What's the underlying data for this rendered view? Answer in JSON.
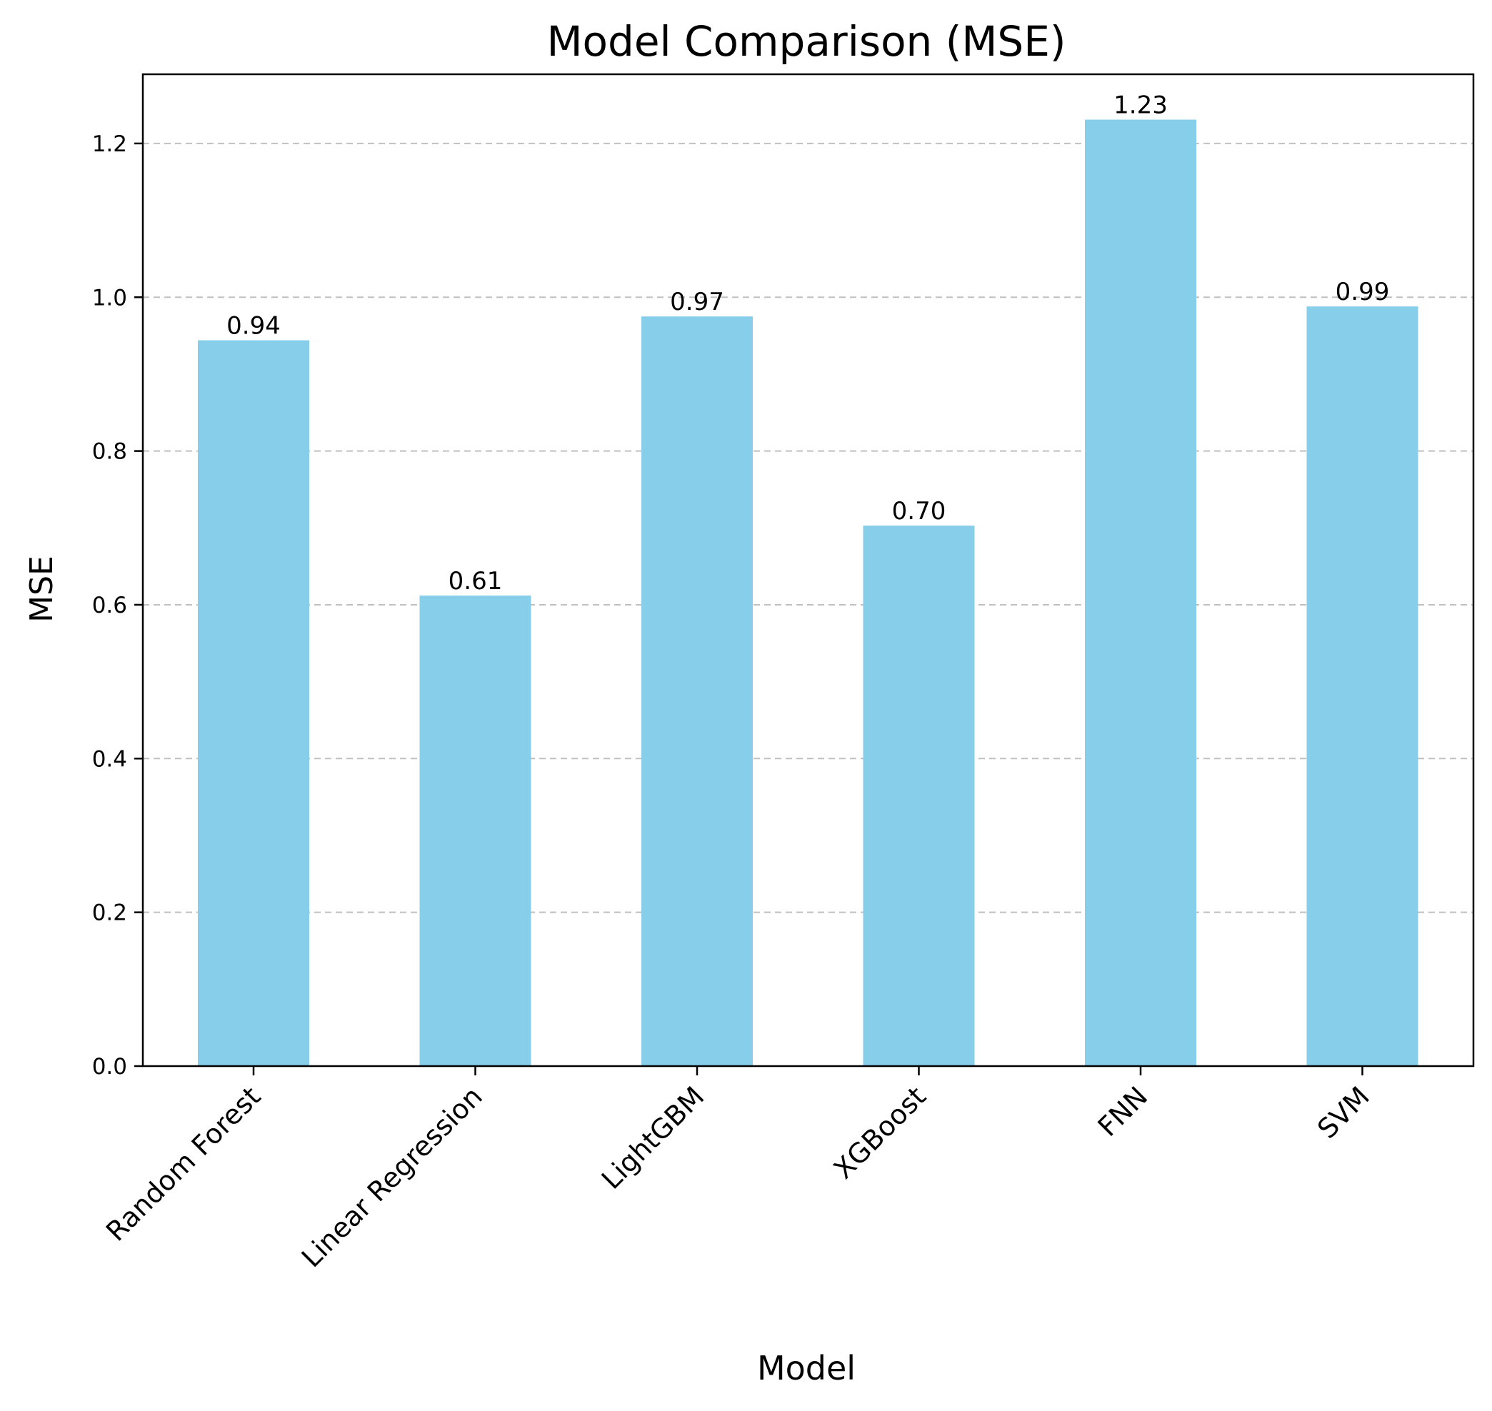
{
  "chart_data": {
    "type": "bar",
    "title": "Model Comparison (MSE)",
    "xlabel": "Model",
    "ylabel": "MSE",
    "categories": [
      "Random Forest",
      "Linear Regression",
      "LightGBM",
      "XGBoost",
      "FNN",
      "SVM"
    ],
    "values": [
      0.944,
      0.612,
      0.975,
      0.703,
      1.231,
      0.988
    ],
    "value_labels": [
      "0.94",
      "0.61",
      "0.97",
      "0.70",
      "1.23",
      "0.99"
    ],
    "ylim": [
      0,
      1.29
    ],
    "yticks": [
      0.0,
      0.2,
      0.4,
      0.6,
      0.8,
      1.0,
      1.2
    ],
    "ytick_labels": [
      "0.0",
      "0.2",
      "0.4",
      "0.6",
      "0.8",
      "1.0",
      "1.2"
    ],
    "grid": {
      "axis": "y",
      "style": "dashed",
      "color": "#c0c0c0"
    },
    "bar_color": "#87ceeb",
    "legend": "none"
  }
}
